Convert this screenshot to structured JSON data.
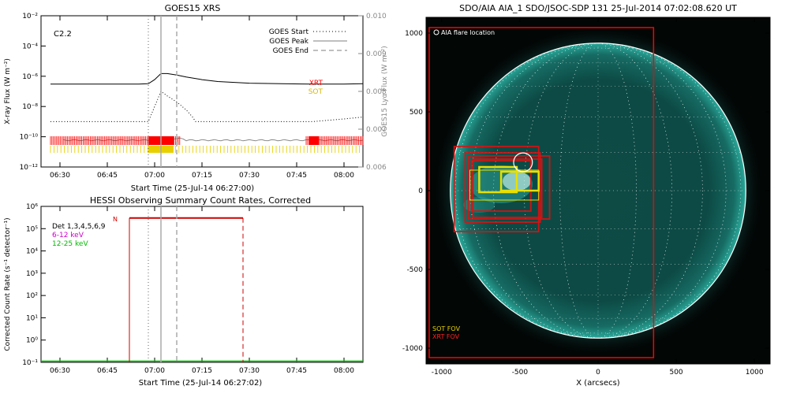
{
  "goes_panel": {
    "title": "GOES15 XRS",
    "class_label": "C2.2",
    "ylabel_left": "X-ray Flux (W m⁻²)",
    "ylabel_right": "GOES15 Lyα Flux (W m⁻²)",
    "xlabel": "Start Time (25-Jul-14 06:27:00)",
    "legend": [
      "GOES Start",
      "GOES Peak",
      "GOES End"
    ],
    "instrument_labels": {
      "xrt": "XRT",
      "sot": "SOT"
    },
    "colors": {
      "xrt": "#ff0000",
      "sot": "#e8d000",
      "flux": "#000000",
      "lya": "#888888"
    }
  },
  "hessi_panel": {
    "title": "HESSI Observing Summary Count Rates, Corrected",
    "ylabel": "Corrected Count Rate (s⁻¹ detector⁻¹)",
    "xlabel": "Start Time (25-Jul-14 06:27:02)",
    "legend": [
      "Det 1,3,4,5,6,9",
      "6-12 keV",
      "12-25 keV"
    ],
    "flag_label": "N",
    "colors": {
      "band1": "#cc00cc",
      "band2": "#00bb00",
      "obs": "#cc0000"
    }
  },
  "aia_panel": {
    "title": "SDO/AIA AIA_1 SDO/JSOC-SDP 131 25-Jul-2014 07:02:08.620 UT",
    "legend_flare": "AIA flare location",
    "legend_sot": "SOT FOV",
    "legend_xrt": "XRT FOV",
    "xlabel": "X (arcsecs)"
  },
  "chart_data": [
    {
      "type": "line",
      "panel": "goes",
      "title": "GOES15 XRS",
      "xlabel": "Start Time (25-Jul-14 06:27:00)",
      "ylabel": "X-ray Flux (W m⁻²)",
      "y_scale": "log",
      "ylim": [
        1e-12,
        0.01
      ],
      "y_right_label": "GOES15 Lyα Flux (W m⁻²)",
      "y_right_lim": [
        0.006,
        0.01
      ],
      "x_ticks": [
        "06:30",
        "06:45",
        "07:00",
        "07:15",
        "07:30",
        "07:45",
        "08:00"
      ],
      "y_ticks": [
        "10⁻¹²",
        "10⁻¹⁰",
        "10⁻⁸",
        "10⁻⁶",
        "10⁻⁴",
        "10⁻²"
      ],
      "y_right_ticks": [
        "0.006",
        "0.007",
        "0.008",
        "0.009",
        "0.010"
      ],
      "markers": {
        "goes_start": "06:58",
        "goes_peak": "07:02",
        "goes_end": "07:07"
      },
      "series": [
        {
          "name": "XRT",
          "x": [
            "06:27",
            "06:35",
            "06:45",
            "06:55",
            "06:58",
            "07:00",
            "07:02",
            "07:04",
            "07:07",
            "07:10",
            "07:15",
            "07:20",
            "07:30",
            "07:40",
            "07:50",
            "08:00",
            "08:06"
          ],
          "y": [
            3e-07,
            3e-07,
            3e-07,
            3e-07,
            3.2e-07,
            6e-07,
            1.5e-06,
            1.5e-06,
            1.2e-06,
            9e-07,
            6e-07,
            4.5e-07,
            3.5e-07,
            3.2e-07,
            3e-07,
            3e-07,
            3.2e-07
          ]
        },
        {
          "name": "SOT",
          "x": [
            "06:27",
            "06:50",
            "06:58",
            "07:00",
            "07:02",
            "07:04",
            "07:07",
            "07:10",
            "07:12",
            "07:13",
            "07:30",
            "07:50",
            "08:00",
            "08:06"
          ],
          "y": [
            1e-09,
            1e-09,
            1e-09,
            1e-08,
            1e-07,
            5e-08,
            2e-08,
            6e-09,
            2e-09,
            1e-09,
            1e-09,
            1e-09,
            1.5e-09,
            2e-09
          ]
        }
      ]
    },
    {
      "type": "line",
      "panel": "hessi",
      "title": "HESSI Observing Summary Count Rates, Corrected",
      "xlabel": "Start Time (25-Jul-14 06:27:02)",
      "ylabel": "Corrected Count Rate (s⁻¹ detector⁻¹)",
      "y_scale": "log",
      "ylim": [
        0.1,
        1000000
      ],
      "x_ticks": [
        "06:30",
        "06:45",
        "07:00",
        "07:15",
        "07:30",
        "07:45",
        "08:00"
      ],
      "y_ticks": [
        "10⁻¹",
        "10⁰",
        "10¹",
        "10²",
        "10³",
        "10⁴",
        "10⁵",
        "10⁶"
      ],
      "observation_window": [
        "06:52",
        "07:28"
      ],
      "observation_level": 300000,
      "markers": {
        "goes_start": "06:58",
        "goes_peak": "07:02",
        "goes_end": "07:07"
      }
    },
    {
      "type": "scatter",
      "panel": "aia",
      "title": "SDO/AIA AIA_1 SDO/JSOC-SDP 131 25-Jul-2014 07:02:08.620 UT",
      "xlabel": "X (arcsecs)",
      "xlim": [
        -1100,
        1100
      ],
      "ylim": [
        -1100,
        1100
      ],
      "x_ticks": [
        "-1000",
        "-500",
        "0",
        "500",
        "1000"
      ],
      "y_ticks": [
        "1000",
        "500",
        "0",
        "-500",
        "-1000"
      ],
      "flare_location": {
        "x": -480,
        "y": 180,
        "r": 60
      },
      "solar_radius": 945,
      "fov_boxes_xrt": [
        {
          "x0": -1080,
          "x1": 355,
          "y0": -1060,
          "y1": 1035
        },
        {
          "x0": -920,
          "x1": -380,
          "y0": -260,
          "y1": 280
        },
        {
          "x0": -850,
          "x1": -370,
          "y0": -200,
          "y1": 240
        },
        {
          "x0": -830,
          "x1": -310,
          "y0": -180,
          "y1": 220
        },
        {
          "x0": -800,
          "x1": -360,
          "y0": -170,
          "y1": 200
        },
        {
          "x0": -810,
          "x1": -430,
          "y0": -130,
          "y1": 190
        }
      ],
      "fov_boxes_sot": [
        {
          "x0": -820,
          "x1": -380,
          "y0": -60,
          "y1": 130
        },
        {
          "x0": -620,
          "x1": -380,
          "y0": 0,
          "y1": 120
        },
        {
          "x0": -760,
          "x1": -520,
          "y0": -10,
          "y1": 150
        }
      ]
    }
  ]
}
